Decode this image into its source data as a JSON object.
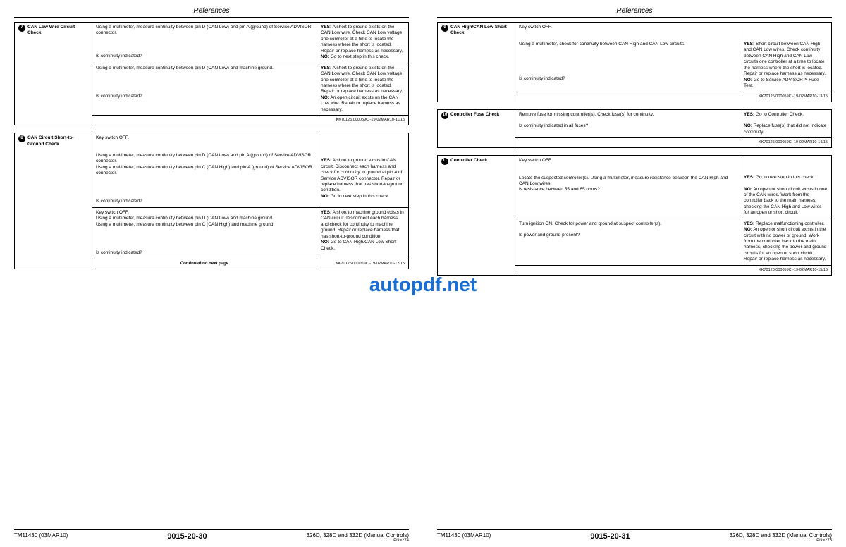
{
  "watermark": "autopdf.net",
  "header": "References",
  "colors": {
    "text": "#000000",
    "background": "#ffffff",
    "watermark": "#1a6fd4",
    "border": "#000000"
  },
  "leftPage": {
    "tables": [
      {
        "step_num": "7",
        "step_title": "CAN Low Wire Circuit Check",
        "rows": [
          {
            "proc": "Using a multimeter, measure continuity between pin D (CAN Low) and pin A (ground) of Service ADVISOR connector.",
            "proc2": "Is continuity indicated?",
            "yes": "A short to ground exists on the CAN Low wire. Check CAN Low voltage one controller at a time to locate the harness where the short is located. Repair or replace harness as necessary.",
            "no": "Go to next step in this check."
          },
          {
            "proc": "Using a multimeter, measure continuity between pin D (CAN Low) and machine ground.",
            "proc2": "Is continuity indicated?",
            "yes": "A short to ground exists on the CAN Low wire. Check CAN Low voltage one controller at a time to locate the harness where the short is located. Repair or replace harness as necessary.",
            "no": "An open circuit exists on the CAN Low wire. Repair or replace harness as necessary."
          }
        ],
        "ref": "KK70125,000059C -19-02MAR10-11/15"
      },
      {
        "step_num": "8",
        "step_title": "CAN Circuit Short-to-Ground Check",
        "rows": [
          {
            "proc_lines": [
              "Key switch OFF.",
              "",
              "Using a multimeter, measure continuity between pin D (CAN Low) and pin A (ground) of Service ADVISOR connector.",
              "Using a multimeter, measure continuity between pin C (CAN High) and pin A (ground) of Service ADVISOR connector."
            ],
            "proc2": "Is continuity indicated?",
            "yes": "A short to ground exists in CAN circuit. Disconnect each harness and check for continuity to ground at pin A of Service ADVISOR connector. Repair or replace harness that has short-to-ground condition.",
            "no": "Go to next step in this check."
          },
          {
            "proc_lines": [
              "Key switch OFF.",
              "Using a multimeter, measure continuity between pin D (CAN Low) and machine ground.",
              "Using a multimeter, measure continuity between pin C (CAN High) and machine ground."
            ],
            "proc2": "Is continuity indicated?",
            "yes": "A short to machine ground exists in CAN circuit. Disconnect each harness and check for continuity to machine ground. Repair or replace harness that has short-to-ground condition.",
            "no": "Go to CAN High/CAN Low Short Check."
          }
        ],
        "continued": "Continued on next page",
        "ref": "KK70125,000059C -19-02MAR10-12/15"
      }
    ],
    "footer": {
      "left": "TM11430 (03MAR10)",
      "mid": "9015-20-30",
      "right": "326D, 328D and 332D (Manual Controls)",
      "pn": "PN=274"
    }
  },
  "rightPage": {
    "tables": [
      {
        "step_num": "9",
        "step_title": "CAN High/CAN Low Short Check",
        "rows": [
          {
            "proc_lines": [
              "Key switch OFF.",
              "",
              "Using a multimeter, check for continuity between CAN High and CAN Low circuits."
            ],
            "proc2": "Is continuity indicated?",
            "yes": "Short circuit between CAN High and CAN Low wires. Check continuity between CAN High and CAN Low circuits one controller at a time to locate the harness where the short is located. Repair or replace harness as necessary.",
            "no": "Go to Service ADVISOR™ Fuse Test."
          }
        ],
        "ref": "KK70125,000059C -19-02MAR10-13/15"
      },
      {
        "step_num": "10",
        "step_title": "Controller Fuse Check",
        "rows": [
          {
            "proc": "Remove fuse for missing controller(s). Check fuse(s) for continuity.",
            "proc2": "Is continuity indicated in all fuses?",
            "yes": "Go to Controller Check.",
            "no": "Replace fuse(s) that did not indicate continuity."
          }
        ],
        "ref": "KK70125,000059C -19-02MAR10-14/15"
      },
      {
        "step_num": "11",
        "step_title": "Controller Check",
        "rows": [
          {
            "proc_lines": [
              "Key switch OFF.",
              "",
              "Locate the suspected controller(s). Using a multimeter, measure resistance between the CAN High and CAN Low wires."
            ],
            "proc2": "Is resistance between 55 and 65 ohms?",
            "yes": "Go to next step in this check.",
            "no": "An open or short circuit exists in one of the CAN wires. Work from the controller back to the main harness, checking the CAN High and Low wires for an open or short circuit."
          },
          {
            "proc": "Turn ignition ON. Check for power and ground at suspect controller(s).",
            "proc2": "Is power and ground present?",
            "yes": "Replace malfunctioning controller.",
            "no": "An open or short circuit exists in the circuit with no power or ground. Work from the controller back to the main harness, checking the power and ground circuits for an open or short circuit. Repair or replace harness as necessary."
          }
        ],
        "ref": "KK70125,000059C -19-02MAR10-15/15"
      }
    ],
    "footer": {
      "left": "TM11430 (03MAR10)",
      "mid": "9015-20-31",
      "right": "326D, 328D and 332D (Manual Controls)",
      "pn": "PN=275"
    }
  }
}
